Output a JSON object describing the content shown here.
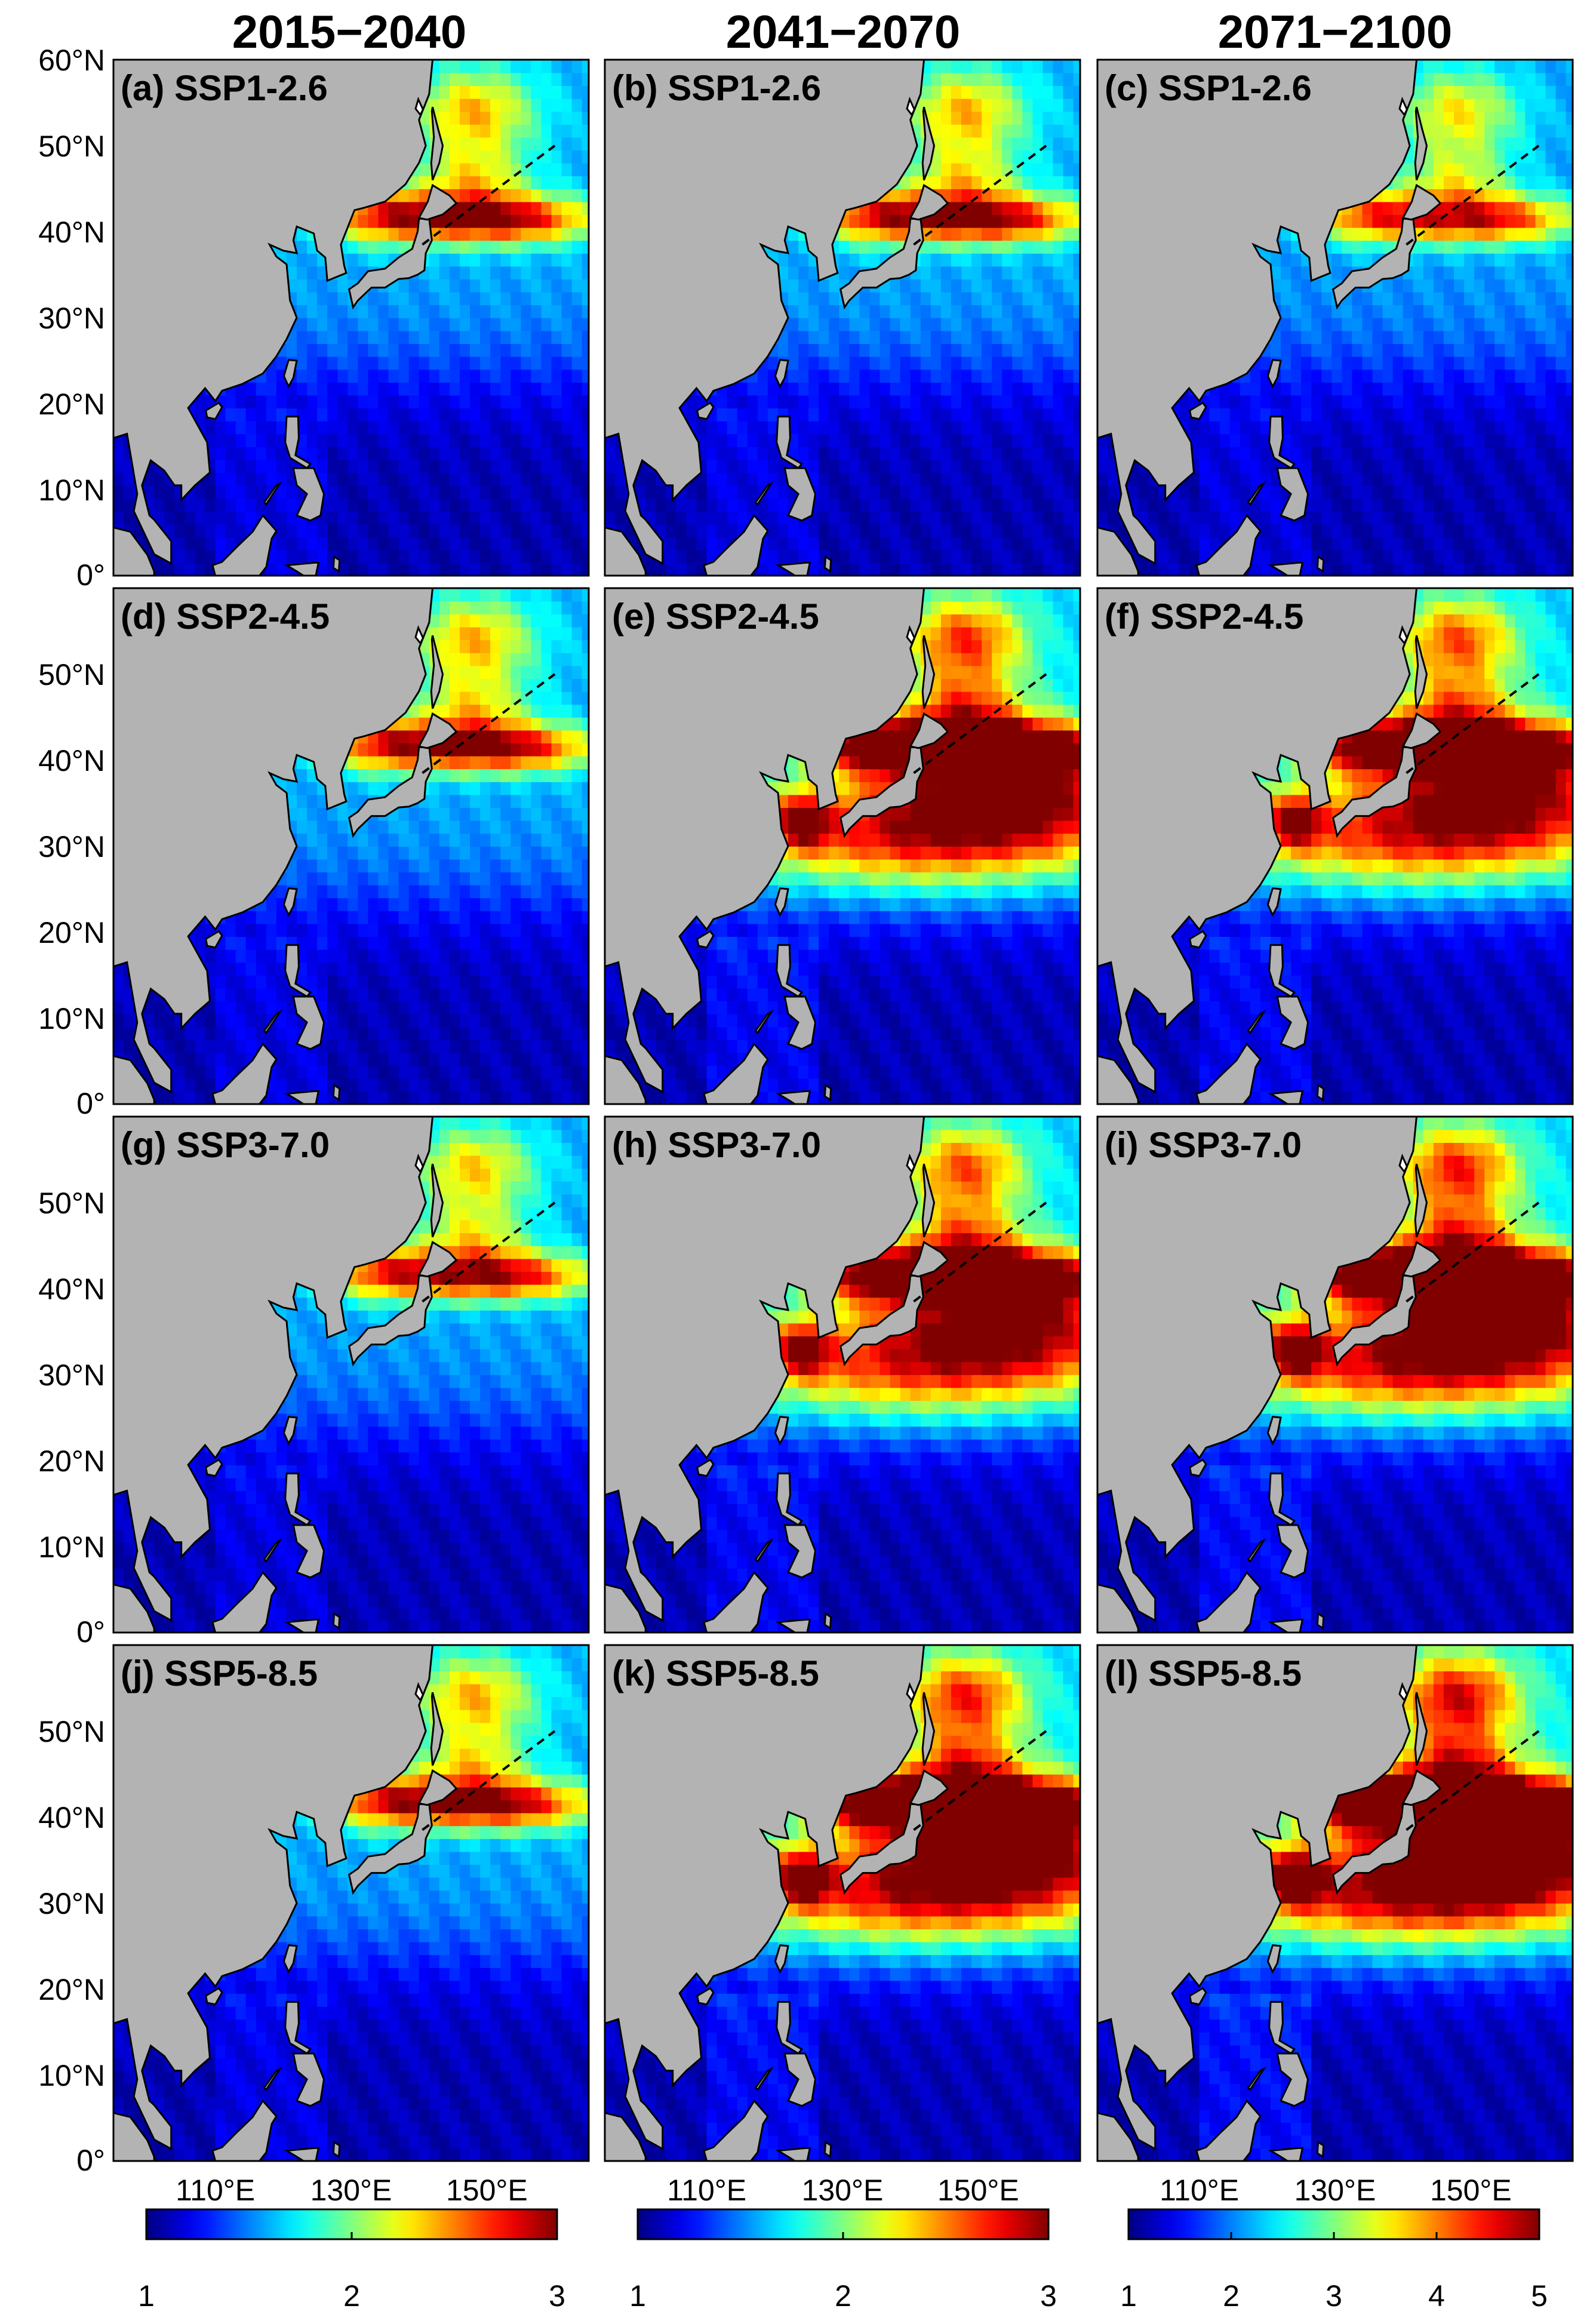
{
  "chart_data": {
    "type": "heatmap",
    "column_titles": [
      "2015−2040",
      "2041−2070",
      "2071−2100"
    ],
    "y_ticks": [
      "0°",
      "10°N",
      "20°N",
      "30°N",
      "40°N",
      "50°N",
      "60°N"
    ],
    "y_tick_values": [
      0,
      10,
      20,
      30,
      40,
      50,
      60
    ],
    "x_ticks": [
      "110°E",
      "130°E",
      "150°E"
    ],
    "x_tick_values": [
      110,
      130,
      150
    ],
    "lon_range": [
      95,
      165
    ],
    "lat_range": [
      0,
      60
    ],
    "colormap": "jet",
    "land_color": "#b3b3b3",
    "colorbars": [
      {
        "range": [
          1,
          3
        ],
        "ticks": [
          "1",
          "2",
          "3"
        ]
      },
      {
        "range": [
          1,
          3
        ],
        "ticks": [
          "1",
          "2",
          "3"
        ]
      },
      {
        "range": [
          1,
          5
        ],
        "ticks": [
          "1",
          "2",
          "3",
          "4",
          "5"
        ]
      }
    ],
    "panels": [
      {
        "label": "(a) SSP1-2.6",
        "period": "2015−2040",
        "scenario": "SSP1-2.6",
        "intensity": 0.55
      },
      {
        "label": "(b) SSP1-2.6",
        "period": "2041−2070",
        "scenario": "SSP1-2.6",
        "intensity": 0.55
      },
      {
        "label": "(c) SSP1-2.6",
        "period": "2071−2100",
        "scenario": "SSP1-2.6",
        "intensity": 0.45
      },
      {
        "label": "(d) SSP2-4.5",
        "period": "2015−2040",
        "scenario": "SSP2-4.5",
        "intensity": 0.55
      },
      {
        "label": "(e) SSP2-4.5",
        "period": "2041−2070",
        "scenario": "SSP2-4.5",
        "intensity": 0.78
      },
      {
        "label": "(f) SSP2-4.5",
        "period": "2071−2100",
        "scenario": "SSP2-4.5",
        "intensity": 0.72
      },
      {
        "label": "(g) SSP3-7.0",
        "period": "2015−2040",
        "scenario": "SSP3-7.0",
        "intensity": 0.5
      },
      {
        "label": "(h) SSP3-7.0",
        "period": "2041−2070",
        "scenario": "SSP3-7.0",
        "intensity": 0.72
      },
      {
        "label": "(i) SSP3-7.0",
        "period": "2071−2100",
        "scenario": "SSP3-7.0",
        "intensity": 0.82
      },
      {
        "label": "(j) SSP5-8.5",
        "period": "2015−2040",
        "scenario": "SSP5-8.5",
        "intensity": 0.55
      },
      {
        "label": "(k) SSP5-8.5",
        "period": "2041−2070",
        "scenario": "SSP5-8.5",
        "intensity": 0.82
      },
      {
        "label": "(l) SSP5-8.5",
        "period": "2071−2100",
        "scenario": "SSP5-8.5",
        "intensity": 0.92
      }
    ]
  }
}
